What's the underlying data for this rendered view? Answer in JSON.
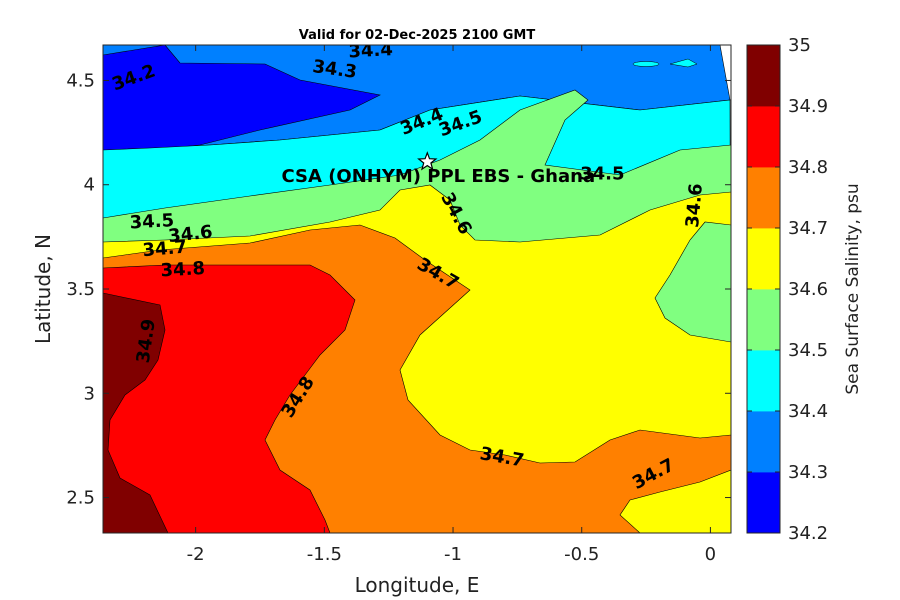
{
  "chart_data": {
    "type": "contour",
    "title": "Valid for 02-Dec-2025 2100 GMT",
    "xlabel": "Longitude, E",
    "ylabel": "Latitude, N",
    "xlim": [
      -2.36,
      0.08
    ],
    "ylim": [
      2.33,
      4.67
    ],
    "xticks": [
      {
        "v": -2,
        "label": "-2"
      },
      {
        "v": -1.5,
        "label": "-1.5"
      },
      {
        "v": -1,
        "label": "-1"
      },
      {
        "v": -0.5,
        "label": "-0.5"
      },
      {
        "v": 0,
        "label": "0"
      }
    ],
    "yticks": [
      {
        "v": 2.5,
        "label": "2.5"
      },
      {
        "v": 3,
        "label": "3"
      },
      {
        "v": 3.5,
        "label": "3.5"
      },
      {
        "v": 4,
        "label": "4"
      },
      {
        "v": 4.5,
        "label": "4.5"
      }
    ],
    "colorbar": {
      "label": "Sea Surface Salinity, psu",
      "levels": [
        34.2,
        34.3,
        34.4,
        34.5,
        34.6,
        34.7,
        34.8,
        34.9,
        35
      ],
      "level_labels": [
        "34.2",
        "34.3",
        "34.4",
        "34.5",
        "34.6",
        "34.7",
        "34.8",
        "34.9",
        "35"
      ],
      "colors": [
        "#0000FF",
        "#0080FF",
        "#00FFFF",
        "#80FF80",
        "#FFFF00",
        "#FF8000",
        "#FF0000",
        "#800000"
      ]
    },
    "contour_labels": [
      {
        "text": "34.2",
        "lon": -2.24,
        "lat": 4.51,
        "rot": -20
      },
      {
        "text": "34.3",
        "lon": -1.46,
        "lat": 4.55,
        "rot": 8
      },
      {
        "text": "34.4",
        "lon": -1.32,
        "lat": 4.64,
        "rot": -3
      },
      {
        "text": "34.4",
        "lon": -1.12,
        "lat": 4.3,
        "rot": -22
      },
      {
        "text": "34.5",
        "lon": -0.97,
        "lat": 4.29,
        "rot": -20
      },
      {
        "text": "34.5",
        "lon": -0.42,
        "lat": 4.05,
        "rot": 0
      },
      {
        "text": "34.6",
        "lon": -0.06,
        "lat": 3.9,
        "rot": -85
      },
      {
        "text": "34.6",
        "lon": -0.99,
        "lat": 3.86,
        "rot": 62
      },
      {
        "text": "34.5",
        "lon": -2.17,
        "lat": 3.82,
        "rot": -3
      },
      {
        "text": "34.6",
        "lon": -2.02,
        "lat": 3.76,
        "rot": -6
      },
      {
        "text": "34.7",
        "lon": -2.12,
        "lat": 3.69,
        "rot": -5
      },
      {
        "text": "34.8",
        "lon": -2.05,
        "lat": 3.59,
        "rot": -3
      },
      {
        "text": "34.7",
        "lon": -1.06,
        "lat": 3.57,
        "rot": 30
      },
      {
        "text": "34.9",
        "lon": -2.19,
        "lat": 3.25,
        "rot": -82
      },
      {
        "text": "34.8",
        "lon": -1.6,
        "lat": 2.98,
        "rot": -58
      },
      {
        "text": "34.7",
        "lon": -0.81,
        "lat": 2.69,
        "rot": 10
      },
      {
        "text": "34.7",
        "lon": -0.22,
        "lat": 2.61,
        "rot": -28
      }
    ],
    "site": {
      "label": "CSA (ONHYM) PPL EBS  - Ghana",
      "lon": -1.1,
      "lat": 4.11
    }
  }
}
